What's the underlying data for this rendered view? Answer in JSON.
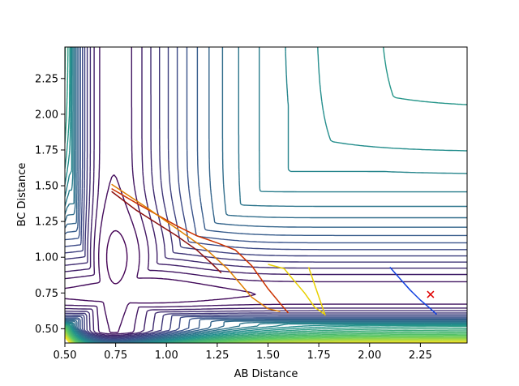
{
  "chart_data": {
    "type": "line",
    "subtype": "contour plot with overlaid trajectories",
    "title": "",
    "xlabel": "AB Distance",
    "ylabel": "BC Distance",
    "xlim": [
      0.5,
      2.48
    ],
    "ylim": [
      0.4,
      2.47
    ],
    "xticks": [
      0.5,
      0.75,
      1.0,
      1.25,
      1.5,
      1.75,
      2.0,
      2.25
    ],
    "xtick_labels": [
      "0.50",
      "0.75",
      "1.00",
      "1.25",
      "1.50",
      "1.75",
      "2.00",
      "2.25"
    ],
    "yticks": [
      0.5,
      0.75,
      1.0,
      1.25,
      1.5,
      1.75,
      2.0,
      2.25
    ],
    "ytick_labels": [
      "0.50",
      "0.75",
      "1.00",
      "1.25",
      "1.50",
      "1.75",
      "2.00",
      "2.25"
    ],
    "grid": false,
    "legend": "none",
    "colormap": "viridis",
    "contours": {
      "surface": "London-Eyring-Polanyi-Sato style potential energy surface",
      "levels": 32,
      "valley_min_x": 0.74,
      "valley_min_y": 0.74
    },
    "series": [
      {
        "color": "#cc3300",
        "x": [
          0.73,
          0.85,
          0.95,
          1.05,
          1.15,
          1.25,
          1.34,
          1.42,
          1.5,
          1.57,
          1.6
        ],
        "y": [
          1.48,
          1.38,
          1.3,
          1.22,
          1.15,
          1.1,
          1.05,
          0.94,
          0.78,
          0.66,
          0.61
        ]
      },
      {
        "color": "#e08000",
        "x": [
          0.73,
          0.9,
          1.05,
          1.2,
          1.3,
          1.36,
          1.42,
          1.5,
          1.56
        ],
        "y": [
          1.51,
          1.35,
          1.2,
          1.05,
          0.92,
          0.82,
          0.72,
          0.64,
          0.62
        ]
      },
      {
        "color": "#8a1010",
        "x": [
          0.73,
          0.85,
          0.95,
          1.05,
          1.15,
          1.22,
          1.27
        ],
        "y": [
          1.46,
          1.33,
          1.24,
          1.15,
          1.05,
          0.96,
          0.89
        ]
      },
      {
        "color": "#e8d000",
        "x": [
          1.5,
          1.58,
          1.62,
          1.68,
          1.73,
          1.78,
          1.7
        ],
        "y": [
          0.95,
          0.92,
          0.85,
          0.75,
          0.65,
          0.6,
          0.93
        ]
      },
      {
        "color": "#1040e0",
        "x": [
          2.1,
          2.15,
          2.2,
          2.25,
          2.3,
          2.33
        ],
        "y": [
          0.93,
          0.85,
          0.77,
          0.7,
          0.64,
          0.6
        ]
      }
    ],
    "marker": {
      "x": 2.3,
      "y": 0.74,
      "symbol": "x",
      "color": "#e00000"
    }
  }
}
